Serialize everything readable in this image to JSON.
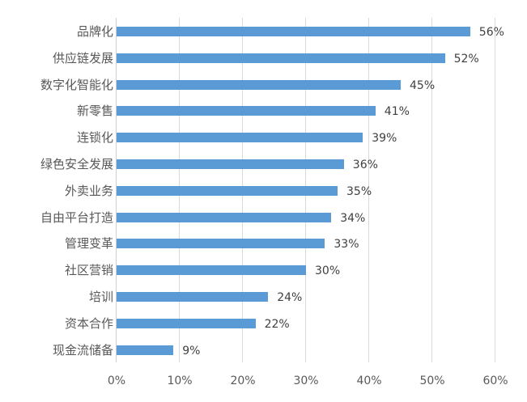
{
  "chart_data": {
    "type": "bar",
    "orientation": "horizontal",
    "title": "",
    "xlabel": "",
    "ylabel": "",
    "xlim": [
      0,
      60
    ],
    "x_ticks": [
      "0%",
      "10%",
      "20%",
      "30%",
      "40%",
      "50%",
      "60%"
    ],
    "grid": "vertical",
    "legend": "none",
    "bar_color": "#5b9bd5",
    "categories": [
      "品牌化",
      "供应链发展",
      "数字化智能化",
      "新零售",
      "连锁化",
      "绿色安全发展",
      "外卖业务",
      "自由平台打造",
      "管理变革",
      "社区营销",
      "培训",
      "资本合作",
      "现金流储备"
    ],
    "values": [
      56,
      52,
      45,
      41,
      39,
      36,
      35,
      34,
      33,
      30,
      24,
      22,
      9
    ],
    "value_labels": [
      "56%",
      "52%",
      "45%",
      "41%",
      "39%",
      "36%",
      "35%",
      "34%",
      "33%",
      "30%",
      "24%",
      "22%",
      "9%"
    ]
  }
}
